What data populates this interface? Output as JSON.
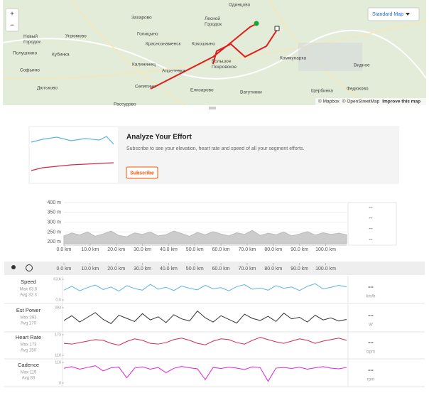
{
  "map": {
    "zoom_in": "+",
    "zoom_out": "−",
    "style_button": "Standard Map",
    "places": [
      "Одинцово",
      "Захарово",
      "Лесной Городок",
      "Новый Городок",
      "Угрюмово",
      "Голицыно",
      "Кубинка",
      "Полушкино",
      "Краснознаменск",
      "Кокошкино",
      "Коммунарка",
      "Софьино",
      "Калининец",
      "Апрелевка",
      "Большое Покровское",
      "Видное",
      "Дютьково",
      "Селятино",
      "Елизарово",
      "Ватутинки",
      "Щербинка",
      "Федюково",
      "Рассудово"
    ],
    "attribution": [
      "© Mapbox",
      "© OpenStreetMap",
      "Improve this map"
    ]
  },
  "upsell": {
    "title": "Analyze Your Effort",
    "text": "Subscribe to see your elevation, heart rate and speed of all your segment efforts.",
    "button": "Subscribe"
  },
  "elevation": {
    "xlim": [
      0,
      108
    ],
    "ylim": [
      190,
      400
    ],
    "yticks": [
      {
        "value": 400,
        "label": "400 m"
      },
      {
        "value": 350,
        "label": "350 m"
      },
      {
        "value": 300,
        "label": "300 m"
      },
      {
        "value": 250,
        "label": "250 m"
      },
      {
        "value": 200,
        "label": "200 m"
      }
    ],
    "xticks": [
      {
        "value": 0,
        "label": "0.0 km"
      },
      {
        "value": 10,
        "label": "10.0 km"
      },
      {
        "value": 20,
        "label": "20.0 km"
      },
      {
        "value": 30,
        "label": "30.0 km"
      },
      {
        "value": 40,
        "label": "40.0 km"
      },
      {
        "value": 50,
        "label": "50.0 km"
      },
      {
        "value": 60,
        "label": "60.0 km"
      },
      {
        "value": 70,
        "label": "70.0 km"
      },
      {
        "value": 80,
        "label": "80.0 km"
      },
      {
        "value": 90,
        "label": "90.0 km"
      },
      {
        "value": 100,
        "label": "100.0 km"
      }
    ],
    "x": [
      0,
      3,
      6,
      9,
      12,
      15,
      18,
      21,
      24,
      27,
      30,
      33,
      36,
      39,
      42,
      45,
      48,
      51,
      54,
      57,
      60,
      63,
      66,
      69,
      72,
      75,
      78,
      81,
      84,
      87,
      90,
      93,
      96,
      99,
      102,
      105,
      108
    ],
    "values": [
      230,
      245,
      235,
      250,
      228,
      240,
      255,
      232,
      226,
      245,
      238,
      250,
      230,
      236,
      255,
      242,
      228,
      248,
      236,
      252,
      240,
      230,
      246,
      238,
      258,
      232,
      244,
      236,
      250,
      230,
      240,
      252,
      234,
      246,
      238,
      244,
      236
    ],
    "stats": [
      "--",
      "--",
      "--",
      "--"
    ]
  },
  "streams": {
    "xlim": [
      0,
      108
    ],
    "x": [
      0,
      3,
      6,
      9,
      12,
      15,
      18,
      21,
      24,
      27,
      30,
      33,
      36,
      39,
      42,
      45,
      48,
      51,
      54,
      57,
      60,
      63,
      66,
      69,
      72,
      75,
      78,
      81,
      84,
      87,
      90,
      93,
      96,
      99,
      102,
      105,
      108
    ],
    "series": [
      {
        "name": "Speed",
        "max": "Max 63.6",
        "avg": "Avg 32.3",
        "current": "--",
        "unit": "km/h",
        "color": "#5ab4e5",
        "ylim": [
          0,
          63.6
        ],
        "yticks": [
          63.6,
          {
            "value": 0,
            "label": "0.0"
          }
        ],
        "values": [
          30,
          42,
          28,
          38,
          46,
          32,
          40,
          27,
          44,
          35,
          30,
          48,
          33,
          39,
          29,
          43,
          36,
          31,
          45,
          34,
          38,
          28,
          41,
          47,
          33,
          37,
          30,
          44,
          36,
          40,
          29,
          42,
          50,
          34,
          39,
          45,
          40
        ]
      },
      {
        "name": "Est Power",
        "max": "Max 393",
        "avg": "Avg 170",
        "current": "--",
        "unit": "W",
        "color": "#333333",
        "ylim": [
          0,
          393
        ],
        "yticks": [
          393
        ],
        "values": [
          150,
          240,
          120,
          210,
          300,
          170,
          90,
          250,
          190,
          130,
          280,
          160,
          220,
          110,
          260,
          180,
          140,
          330,
          200,
          120,
          240,
          170,
          100,
          270,
          190,
          150,
          230,
          130,
          290,
          180,
          210,
          120,
          250,
          160,
          200,
          140,
          170
        ]
      },
      {
        "name": "Heart Rate",
        "max": "Max 173",
        "avg": "Avg 150",
        "current": "--",
        "unit": "bpm",
        "color": "#d6294a",
        "ylim": [
          118,
          173
        ],
        "yticks": [
          173,
          118
        ],
        "values": [
          150,
          148,
          152,
          156,
          160,
          158,
          150,
          145,
          155,
          162,
          158,
          150,
          148,
          152,
          160,
          164,
          158,
          150,
          146,
          156,
          162,
          160,
          152,
          148,
          158,
          166,
          160,
          154,
          150,
          156,
          162,
          158,
          150,
          156,
          160,
          164,
          158
        ]
      },
      {
        "name": "Cadence",
        "max": "Max 119",
        "avg": "Avg 83",
        "current": "--",
        "unit": "rpm",
        "color": "#e020e0",
        "ylim": [
          0,
          119
        ],
        "yticks": [
          119,
          0
        ],
        "values": [
          85,
          95,
          80,
          90,
          100,
          70,
          88,
          92,
          30,
          86,
          94,
          80,
          90,
          60,
          85,
          96,
          88,
          82,
          20,
          90,
          84,
          92,
          86,
          78,
          94,
          88,
          10,
          86,
          90,
          84,
          92,
          80,
          88,
          95,
          86,
          82,
          90
        ]
      }
    ]
  }
}
